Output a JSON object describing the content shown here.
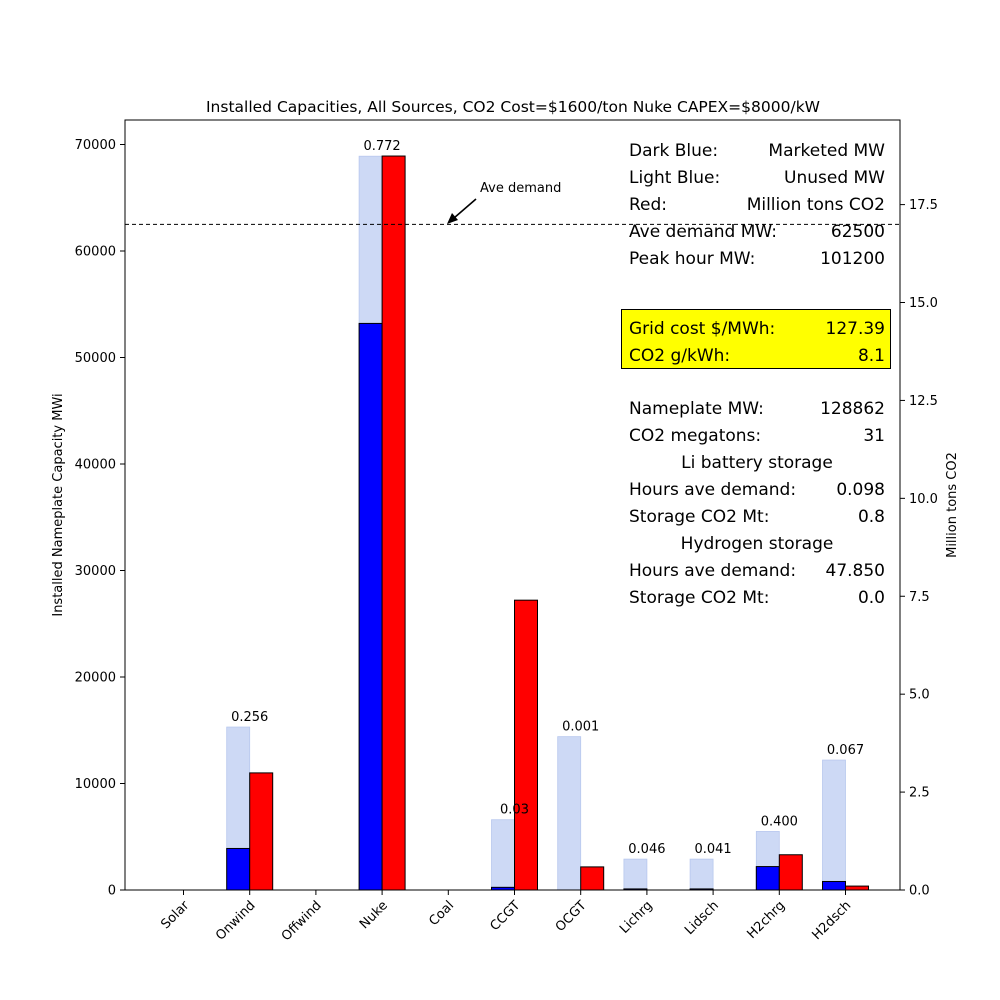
{
  "chart_data": {
    "type": "bar",
    "title": "Installed Capacities, All Sources, CO2 Cost=$1600/ton  Nuke CAPEX=$8000/kW",
    "xlabel": "",
    "ylabel": "Installed Nameplate Capacity MWi",
    "y2label": "Million tons CO2",
    "categories": [
      "Solar",
      "Onwind",
      "Offwind",
      "Nuke",
      "Coal",
      "CCGT",
      "OCGT",
      "Lichrg",
      "Lidsch",
      "H2chrg",
      "H2dsch"
    ],
    "ylim": [
      0,
      72300
    ],
    "y2lim": [
      0,
      19.66
    ],
    "yticks": [
      0,
      10000,
      20000,
      30000,
      40000,
      50000,
      60000,
      70000
    ],
    "y2ticks": [
      "0.0",
      "2.5",
      "5.0",
      "7.5",
      "10.0",
      "12.5",
      "15.0",
      "17.5"
    ],
    "series": [
      {
        "name": "Marketed MW",
        "color": "#0000ff",
        "values": [
          0,
          3900,
          0,
          53200,
          0,
          250,
          0,
          100,
          100,
          2200,
          800
        ]
      },
      {
        "name": "Unused MW",
        "color": "#cdd9f5",
        "values": [
          0,
          15300,
          0,
          68900,
          0,
          6600,
          14400,
          2900,
          2900,
          5500,
          12200
        ]
      },
      {
        "name": "Million tons CO2",
        "color": "#ff0000",
        "axis": "right",
        "values": [
          0,
          2.99,
          0,
          18.74,
          0,
          7.4,
          0.59,
          0,
          0,
          0.9,
          0.1
        ]
      }
    ],
    "bar_labels": [
      "",
      "0.256",
      "",
      "0.772",
      "",
      "0.03",
      "0.001",
      "0.046",
      "0.041",
      "0.400",
      "0.067"
    ],
    "hline": {
      "value": 62500,
      "label": "Ave demand",
      "style": "dashed"
    },
    "grid": false
  },
  "stats": {
    "legend_rows": [
      {
        "label": "Dark Blue:",
        "value": "Marketed MW"
      },
      {
        "label": "Light Blue:",
        "value": "Unused MW"
      },
      {
        "label": "Red:",
        "value": "Million tons CO2"
      },
      {
        "label": "Ave demand MW:",
        "value": "62500"
      },
      {
        "label": "Peak hour MW:",
        "value": "101200"
      }
    ],
    "highlight_rows": [
      {
        "label": "Grid cost $/MWh:",
        "value": "127.39"
      },
      {
        "label": "CO2 g/kWh:",
        "value": "8.1"
      }
    ],
    "summary_rows": [
      {
        "label": "Nameplate MW:",
        "value": "128862"
      },
      {
        "label": "CO2 megatons:",
        "value": "31"
      }
    ],
    "li_heading": "Li battery storage",
    "li_rows": [
      {
        "label": "Hours ave demand:",
        "value": "0.098"
      },
      {
        "label": "Storage CO2 Mt:",
        "value": "0.8"
      }
    ],
    "h2_heading": "Hydrogen storage",
    "h2_rows": [
      {
        "label": "Hours ave demand:",
        "value": "47.850"
      },
      {
        "label": "Storage CO2 Mt:",
        "value": "0.0"
      }
    ],
    "highlight_color": "#ffff00"
  }
}
